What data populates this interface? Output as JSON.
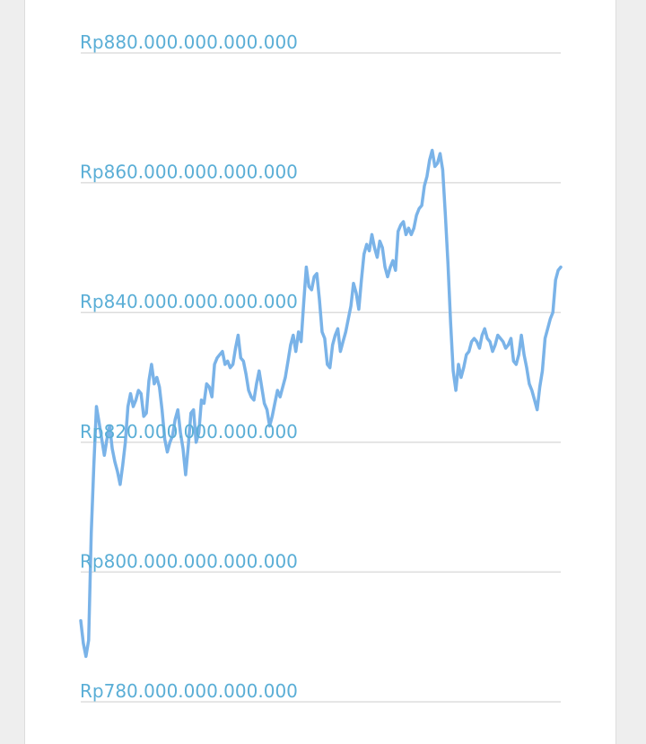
{
  "colors": {
    "line": "#7ab3e8",
    "tick_text": "#5aaed6",
    "grid": "#dddddd"
  },
  "chart_data": {
    "type": "line",
    "title": "",
    "xlabel": "",
    "ylabel": "",
    "grid": true,
    "ylim": [
      780000000000000,
      880000000000000
    ],
    "yticks": [
      880000000000000,
      860000000000000,
      840000000000000,
      820000000000000,
      800000000000000,
      780000000000000
    ],
    "ytick_labels": [
      "Rp880.000.000.000.000",
      "Rp860.000.000.000.000",
      "Rp840.000.000.000.000",
      "Rp820.000.000.000.000",
      "Rp800.000.000.000.000",
      "Rp780.000.000.000.000"
    ],
    "series": [
      {
        "values": [
          792.5,
          789.0,
          787.0,
          789.5,
          806.0,
          816.5,
          825.5,
          823.0,
          820.5,
          818.0,
          820.5,
          822.5,
          819.0,
          817.0,
          815.5,
          813.5,
          816.5,
          820.0,
          825.5,
          827.5,
          825.5,
          826.5,
          828.0,
          827.5,
          824.0,
          824.5,
          829.5,
          832.0,
          829.0,
          830.0,
          828.5,
          825.0,
          820.5,
          818.5,
          820.0,
          821.0,
          823.5,
          825.0,
          821.5,
          819.0,
          815.0,
          819.5,
          824.5,
          825.0,
          820.0,
          821.5,
          826.5,
          826.0,
          829.0,
          828.5,
          827.0,
          832.0,
          833.0,
          833.5,
          834.0,
          832.0,
          832.5,
          831.5,
          832.0,
          834.5,
          836.5,
          833.0,
          832.5,
          830.5,
          828.0,
          827.0,
          826.5,
          829.0,
          831.0,
          828.5,
          826.0,
          825.0,
          822.5,
          824.0,
          826.0,
          828.0,
          827.0,
          828.5,
          830.0,
          832.5,
          835.0,
          836.5,
          834.0,
          837.0,
          835.5,
          841.5,
          847.0,
          844.0,
          843.5,
          845.5,
          846.0,
          842.0,
          837.0,
          836.0,
          832.0,
          831.5,
          835.0,
          836.5,
          837.5,
          834.0,
          835.5,
          837.0,
          839.0,
          841.0,
          844.5,
          843.0,
          840.5,
          845.0,
          849.0,
          850.5,
          849.5,
          852.0,
          850.0,
          848.5,
          851.0,
          850.0,
          847.0,
          845.5,
          847.0,
          848.0,
          846.5,
          852.5,
          853.5,
          854.0,
          852.0,
          853.0,
          852.0,
          853.0,
          855.0,
          856.0,
          856.5,
          859.5,
          861.0,
          863.5,
          865.0,
          862.5,
          863.0,
          864.5,
          862.0,
          855.0,
          847.5,
          838.5,
          831.0,
          828.0,
          832.0,
          830.0,
          831.5,
          833.5,
          834.0,
          835.5,
          836.0,
          835.5,
          834.5,
          836.5,
          837.5,
          836.0,
          835.5,
          834.0,
          835.0,
          836.5,
          836.0,
          835.5,
          834.5,
          835.0,
          836.0,
          832.5,
          832.0,
          833.5,
          836.5,
          833.5,
          831.5,
          829.0,
          828.0,
          826.5,
          825.0,
          828.5,
          831.0,
          836.0,
          837.5,
          839.0,
          840.0,
          845.0,
          846.5,
          847.0
        ]
      }
    ]
  }
}
